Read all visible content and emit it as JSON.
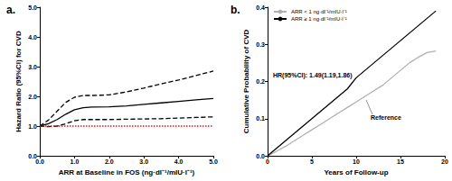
{
  "chart_data": [
    {
      "type": "line",
      "title": "a.",
      "xlabel": "ARR at Baseline in FOS (ng·dl⁻¹/mIU·l⁻¹)",
      "ylabel": "Hazard Ratio (95%CI) for CVD",
      "x": [
        0,
        0.25,
        0.5,
        0.75,
        1.0,
        1.25,
        1.5,
        2.0,
        2.5,
        3.0,
        3.5,
        4.0,
        4.5,
        5.0
      ],
      "series": [
        {
          "color": "#000000",
          "line_style": "solid",
          "values": [
            1.0,
            1.08,
            1.22,
            1.4,
            1.55,
            1.62,
            1.64,
            1.65,
            1.68,
            1.73,
            1.78,
            1.83,
            1.88,
            1.93
          ]
        },
        {
          "color": "#000000",
          "line_style": "dashed",
          "values": [
            1.0,
            1.2,
            1.5,
            1.8,
            1.97,
            2.03,
            2.03,
            2.05,
            2.15,
            2.28,
            2.42,
            2.55,
            2.7,
            2.85
          ]
        },
        {
          "color": "#000000",
          "line_style": "dashed",
          "values": [
            1.0,
            0.98,
            1.0,
            1.08,
            1.18,
            1.22,
            1.22,
            1.22,
            1.23,
            1.24,
            1.25,
            1.27,
            1.29,
            1.31
          ]
        },
        {
          "color": "#e8141c",
          "line_style": "dotted",
          "values": [
            1.0,
            1.0,
            1.0,
            1.0,
            1.0,
            1.0,
            1.0,
            1.0,
            1.0,
            1.0,
            1.0,
            1.0,
            1.0,
            1.0
          ]
        }
      ],
      "xlim": [
        0,
        5
      ],
      "xticks": [
        {
          "value": 0,
          "label": "0.0"
        },
        {
          "value": 1,
          "label": "1.0"
        },
        {
          "value": 2,
          "label": "2.0"
        },
        {
          "value": 3,
          "label": "3.0"
        },
        {
          "value": 4,
          "label": "4.0"
        },
        {
          "value": 5,
          "label": "5.0"
        }
      ],
      "ylim": [
        0,
        5
      ],
      "yticks": [
        {
          "value": 0,
          "label": "0.0"
        },
        {
          "value": 1,
          "label": "1.0"
        },
        {
          "value": 2,
          "label": "2.0"
        },
        {
          "value": 3,
          "label": "3.0"
        },
        {
          "value": 4,
          "label": "4.0"
        },
        {
          "value": 5,
          "label": "5.0"
        }
      ]
    },
    {
      "type": "line",
      "title": "b.",
      "xlabel": "Years of Follow-up",
      "ylabel": "Cumulative Probability of CVD",
      "x": [
        0,
        1,
        2,
        3,
        4,
        5,
        6,
        7,
        8,
        9,
        10,
        11,
        12,
        13,
        14,
        15,
        16,
        17,
        18,
        19
      ],
      "series": [
        {
          "name": "ARR < 1 ng·dl⁻¹/mIU·l⁻¹",
          "color": "#b0b0b0",
          "line_style": "solid",
          "values": [
            0,
            0.012,
            0.025,
            0.04,
            0.055,
            0.07,
            0.085,
            0.1,
            0.115,
            0.13,
            0.145,
            0.16,
            0.175,
            0.19,
            0.21,
            0.23,
            0.25,
            0.265,
            0.278,
            0.282
          ]
        },
        {
          "name": "ARR ≥ 1 ng·dl⁻¹/mIU·l⁻¹",
          "color": "#000000",
          "line_style": "solid",
          "values": [
            0,
            0.02,
            0.04,
            0.06,
            0.08,
            0.1,
            0.12,
            0.14,
            0.16,
            0.18,
            0.21,
            0.23,
            0.25,
            0.27,
            0.29,
            0.31,
            0.33,
            0.35,
            0.37,
            0.39
          ]
        }
      ],
      "legend": "upper left",
      "annotations": [
        "HR(95%CI): 1.49(1.19,1.86)",
        "Reference"
      ],
      "xlim": [
        0,
        20
      ],
      "xticks": [
        0,
        5,
        10,
        15,
        20
      ],
      "ylim": [
        0,
        0.4
      ],
      "yticks": [
        {
          "value": 0,
          "label": "0.0"
        },
        0.1,
        0.2,
        0.3,
        0.4
      ]
    }
  ]
}
